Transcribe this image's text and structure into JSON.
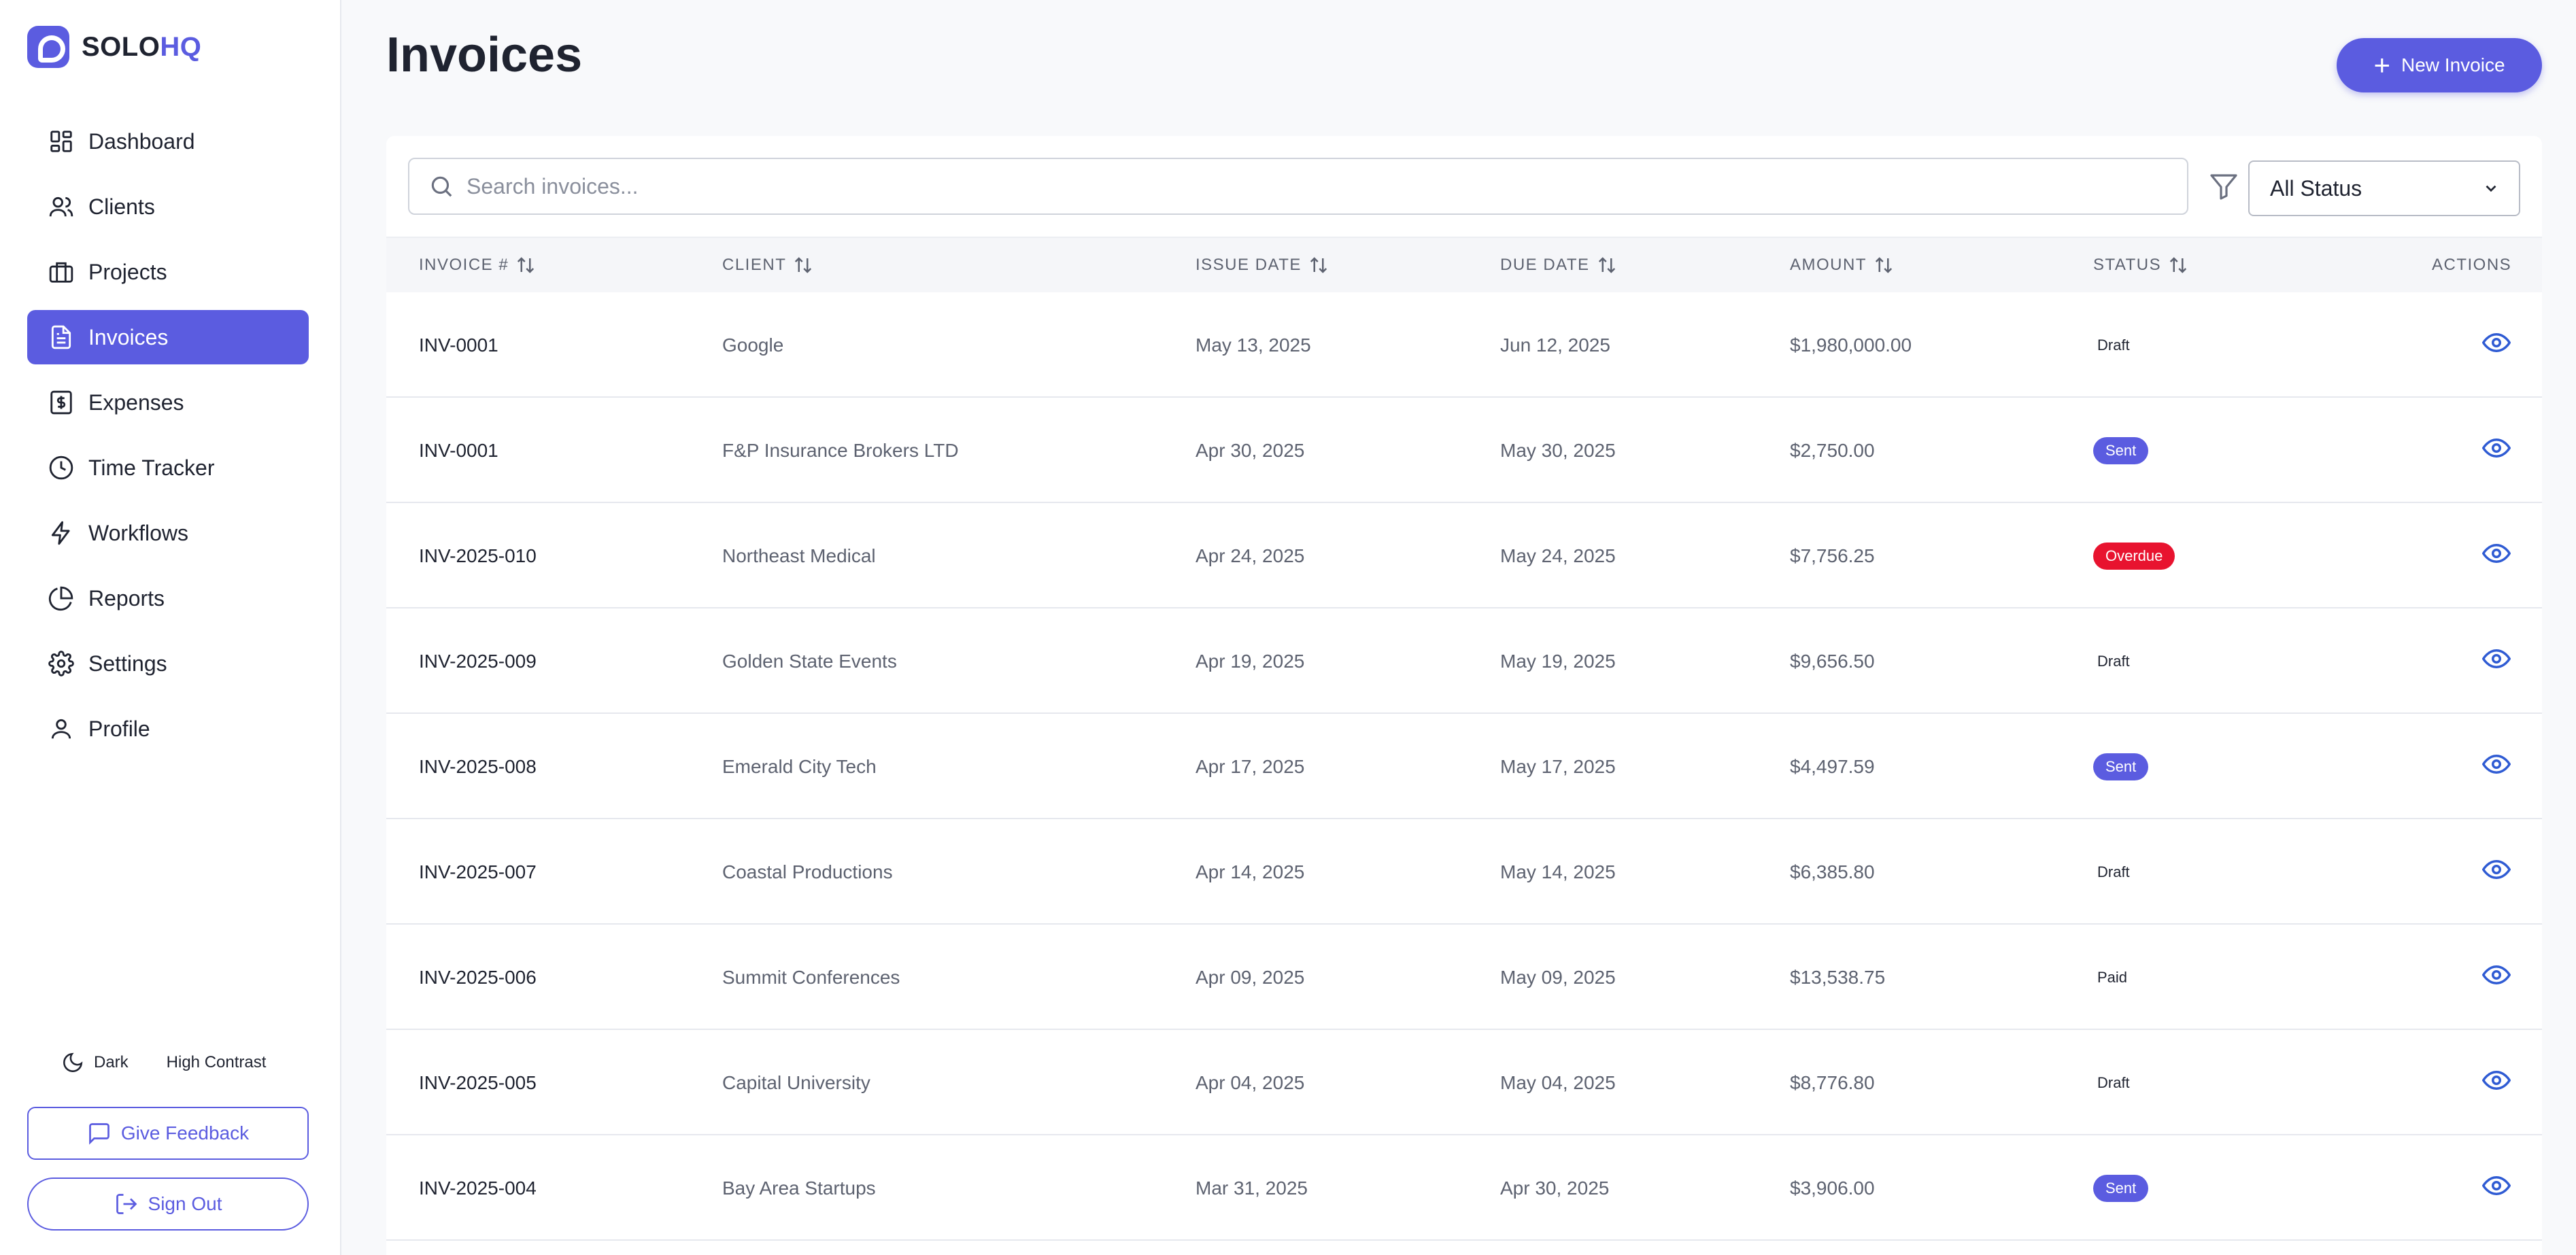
{
  "brand": {
    "name_part1": "SOLO",
    "name_part2": "HQ"
  },
  "colors": {
    "accent": "#5b5ce0",
    "overdue": "#e8132f",
    "eye": "#2f5bd3"
  },
  "sidebar": {
    "items": [
      {
        "label": "Dashboard",
        "icon": "dashboard-icon",
        "active": false
      },
      {
        "label": "Clients",
        "icon": "users-icon",
        "active": false
      },
      {
        "label": "Projects",
        "icon": "briefcase-icon",
        "active": false
      },
      {
        "label": "Invoices",
        "icon": "document-icon",
        "active": true
      },
      {
        "label": "Expenses",
        "icon": "dollar-icon",
        "active": false
      },
      {
        "label": "Time Tracker",
        "icon": "clock-icon",
        "active": false
      },
      {
        "label": "Workflows",
        "icon": "bolt-icon",
        "active": false
      },
      {
        "label": "Reports",
        "icon": "pie-chart-icon",
        "active": false
      },
      {
        "label": "Settings",
        "icon": "gear-icon",
        "active": false
      },
      {
        "label": "Profile",
        "icon": "user-icon",
        "active": false
      }
    ],
    "theme": {
      "dark_label": "Dark",
      "high_contrast_label": "High Contrast"
    },
    "feedback_label": "Give Feedback",
    "signout_label": "Sign Out"
  },
  "header": {
    "title": "Invoices",
    "new_button_label": "New Invoice"
  },
  "toolbar": {
    "search_placeholder": "Search invoices...",
    "status_filter_value": "All Status"
  },
  "table": {
    "columns": [
      "INVOICE #",
      "CLIENT",
      "ISSUE DATE",
      "DUE DATE",
      "AMOUNT",
      "STATUS",
      "ACTIONS"
    ],
    "rows": [
      {
        "invoice": "INV-0001",
        "client": "Google",
        "issue": "May 13, 2025",
        "due": "Jun 12, 2025",
        "amount": "$1,980,000.00",
        "status": "Draft",
        "style": "plain"
      },
      {
        "invoice": "INV-0001",
        "client": "F&P Insurance Brokers LTD",
        "issue": "Apr 30, 2025",
        "due": "May 30, 2025",
        "amount": "$2,750.00",
        "status": "Sent",
        "style": "sent"
      },
      {
        "invoice": "INV-2025-010",
        "client": "Northeast Medical",
        "issue": "Apr 24, 2025",
        "due": "May 24, 2025",
        "amount": "$7,756.25",
        "status": "Overdue",
        "style": "overdue"
      },
      {
        "invoice": "INV-2025-009",
        "client": "Golden State Events",
        "issue": "Apr 19, 2025",
        "due": "May 19, 2025",
        "amount": "$9,656.50",
        "status": "Draft",
        "style": "plain"
      },
      {
        "invoice": "INV-2025-008",
        "client": "Emerald City Tech",
        "issue": "Apr 17, 2025",
        "due": "May 17, 2025",
        "amount": "$4,497.59",
        "status": "Sent",
        "style": "sent"
      },
      {
        "invoice": "INV-2025-007",
        "client": "Coastal Productions",
        "issue": "Apr 14, 2025",
        "due": "May 14, 2025",
        "amount": "$6,385.80",
        "status": "Draft",
        "style": "plain"
      },
      {
        "invoice": "INV-2025-006",
        "client": "Summit Conferences",
        "issue": "Apr 09, 2025",
        "due": "May 09, 2025",
        "amount": "$13,538.75",
        "status": "Paid",
        "style": "plain"
      },
      {
        "invoice": "INV-2025-005",
        "client": "Capital University",
        "issue": "Apr 04, 2025",
        "due": "May 04, 2025",
        "amount": "$8,776.80",
        "status": "Draft",
        "style": "plain"
      },
      {
        "invoice": "INV-2025-004",
        "client": "Bay Area Startups",
        "issue": "Mar 31, 2025",
        "due": "Apr 30, 2025",
        "amount": "$3,906.00",
        "status": "Sent",
        "style": "sent"
      }
    ]
  }
}
